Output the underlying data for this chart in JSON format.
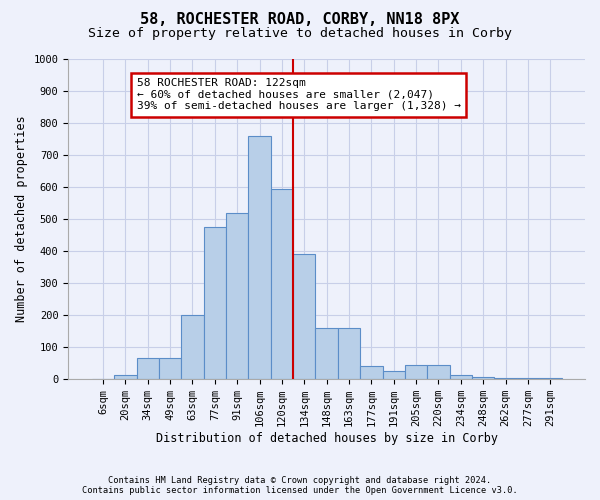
{
  "title": "58, ROCHESTER ROAD, CORBY, NN18 8PX",
  "subtitle": "Size of property relative to detached houses in Corby",
  "xlabel": "Distribution of detached houses by size in Corby",
  "ylabel": "Number of detached properties",
  "bin_labels": [
    "6sqm",
    "20sqm",
    "34sqm",
    "49sqm",
    "63sqm",
    "77sqm",
    "91sqm",
    "106sqm",
    "120sqm",
    "134sqm",
    "148sqm",
    "163sqm",
    "177sqm",
    "191sqm",
    "205sqm",
    "220sqm",
    "234sqm",
    "248sqm",
    "262sqm",
    "277sqm",
    "291sqm"
  ],
  "bar_values": [
    0,
    13,
    65,
    65,
    200,
    475,
    520,
    760,
    595,
    390,
    160,
    160,
    40,
    27,
    43,
    43,
    13,
    7,
    5,
    5,
    5
  ],
  "bar_color": "#b8cfe8",
  "bar_edge_color": "#5b8dc8",
  "vline_x": 8,
  "vline_color": "#cc0000",
  "annotation_text": "58 ROCHESTER ROAD: 122sqm\n← 60% of detached houses are smaller (2,047)\n39% of semi-detached houses are larger (1,328) →",
  "annotation_box_color": "#ffffff",
  "annotation_box_edge": "#cc0000",
  "footnote1": "Contains HM Land Registry data © Crown copyright and database right 2024.",
  "footnote2": "Contains public sector information licensed under the Open Government Licence v3.0.",
  "ylim": [
    0,
    1000
  ],
  "yticks": [
    0,
    100,
    200,
    300,
    400,
    500,
    600,
    700,
    800,
    900,
    1000
  ],
  "background_color": "#eef1fb",
  "grid_color": "#c8cfe8",
  "title_fontsize": 11,
  "subtitle_fontsize": 9.5,
  "axis_label_fontsize": 8.5,
  "tick_fontsize": 7.5
}
